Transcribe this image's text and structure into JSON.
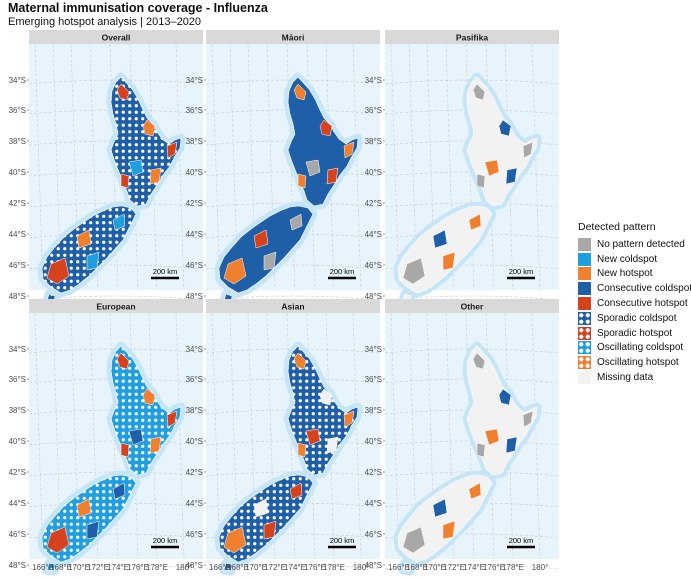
{
  "title": "Maternal immunisation coverage - Influenza",
  "subtitle": "Emerging hotspot analysis | 2013–2020",
  "legend": {
    "title": "Detected pattern",
    "items": [
      {
        "label": "No pattern detected",
        "color": "#a8a8a8",
        "dot": false
      },
      {
        "label": "New coldspot",
        "color": "#1f9ee0",
        "dot": false
      },
      {
        "label": "New hotspot",
        "color": "#f07f2e",
        "dot": false
      },
      {
        "label": "Consecutive coldspot",
        "color": "#1f5fa8",
        "dot": false
      },
      {
        "label": "Consecutive hotspot",
        "color": "#d6421e",
        "dot": false
      },
      {
        "label": "Sporadic coldspot",
        "color": "#1f5fa8",
        "dot": true
      },
      {
        "label": "Sporadic hotspot",
        "color": "#d6421e",
        "dot": true
      },
      {
        "label": "Oscillating coldspot",
        "color": "#1f9ee0",
        "dot": true
      },
      {
        "label": "Oscillating hotspot",
        "color": "#f07f2e",
        "dot": true
      },
      {
        "label": "Missing data",
        "color": "#f2f2f2",
        "dot": false
      }
    ]
  },
  "panels": [
    {
      "label": "Overall",
      "main": "#1f5fa8",
      "dot": true,
      "accents": [
        "#d6421e",
        "#f07f2e",
        "#1f9ee0"
      ]
    },
    {
      "label": "Māori",
      "main": "#1f5fa8",
      "dot": false,
      "accents": [
        "#f07f2e",
        "#d6421e",
        "#a8a8a8"
      ]
    },
    {
      "label": "Pasifika",
      "main": "#f2f2f2",
      "dot": false,
      "accents": [
        "#a8a8a8",
        "#1f5fa8",
        "#f07f2e"
      ]
    },
    {
      "label": "European",
      "main": "#1f9ee0",
      "dot": true,
      "accents": [
        "#d6421e",
        "#f07f2e",
        "#1f5fa8"
      ]
    },
    {
      "label": "Asian",
      "main": "#1f5fa8",
      "dot": true,
      "accents": [
        "#f07f2e",
        "#f2f2f2",
        "#d6421e"
      ]
    },
    {
      "label": "Other",
      "main": "#f2f2f2",
      "dot": false,
      "accents": [
        "#a8a8a8",
        "#1f5fa8",
        "#f07f2e"
      ]
    }
  ],
  "axes": {
    "lat_labels": [
      "34°S",
      "36°S",
      "38°S",
      "40°S",
      "42°S",
      "44°S",
      "46°S",
      "48°S"
    ],
    "lon_labels": [
      "166°E",
      "168°E",
      "170°E",
      "172°E",
      "174°E",
      "176°E",
      "178°E",
      "180°"
    ]
  },
  "scale_bar": "200 km"
}
